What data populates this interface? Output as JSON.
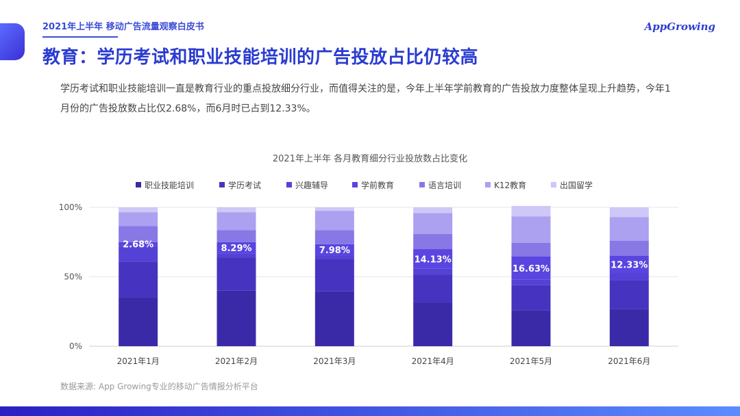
{
  "header": {
    "report_title": "2021年上半年 移动广告流量观察白皮书",
    "logo_part1": "App",
    "logo_part2": "Growing"
  },
  "page_title": "教育：学历考试和职业技能培训的广告投放占比仍较高",
  "intro_text": "学历考试和职业技能培训一直是教育行业的重点投放细分行业，而值得关注的是，今年上半年学前教育的广告投放力度整体呈现上升趋势，今年1月份的广告投放数占比仅2.68%，而6月时已占到12.33%。",
  "source_text": "数据来源: App Growing专业的移动广告情报分析平台",
  "chart_data": {
    "type": "bar",
    "stacked": true,
    "title": "2021年上半年 各月教育细分行业投放数占比变化",
    "categories": [
      "2021年1月",
      "2021年2月",
      "2021年3月",
      "2021年4月",
      "2021年5月",
      "2021年6月"
    ],
    "y_ticks": [
      "0%",
      "50%",
      "100%"
    ],
    "ylim": [
      0,
      100
    ],
    "legend_position": "top",
    "grid": true,
    "series": [
      {
        "name": "职业技能培训",
        "color": "#3b2aa8",
        "values": [
          35,
          40,
          39.5,
          31.5,
          26,
          27
        ]
      },
      {
        "name": "学历考试",
        "color": "#4634c0",
        "values": [
          26,
          24,
          23.5,
          20,
          18,
          20.5
        ]
      },
      {
        "name": "兴趣辅导",
        "color": "#5442d6",
        "values": [
          11.3,
          2.7,
          2.5,
          4.3,
          3.9,
          5.2
        ]
      },
      {
        "name": "学前教育",
        "color": "#5a45e0",
        "values": [
          2.68,
          8.29,
          7.98,
          14.13,
          16.63,
          12.33
        ]
      },
      {
        "name": "语言培训",
        "color": "#8778e6",
        "values": [
          11.5,
          8.5,
          10,
          11,
          10,
          11
        ]
      },
      {
        "name": "K12教育",
        "color": "#aba1f0",
        "values": [
          10,
          13,
          14,
          15,
          19,
          17
        ]
      },
      {
        "name": "出国留学",
        "color": "#cdc8f7",
        "values": [
          3.52,
          3.51,
          2.52,
          4.07,
          7.47,
          6.97
        ]
      }
    ],
    "data_labels": {
      "series": "学前教育",
      "labels": [
        "2.68%",
        "8.29%",
        "7.98%",
        "14.13%",
        "16.63%",
        "12.33%"
      ]
    }
  }
}
